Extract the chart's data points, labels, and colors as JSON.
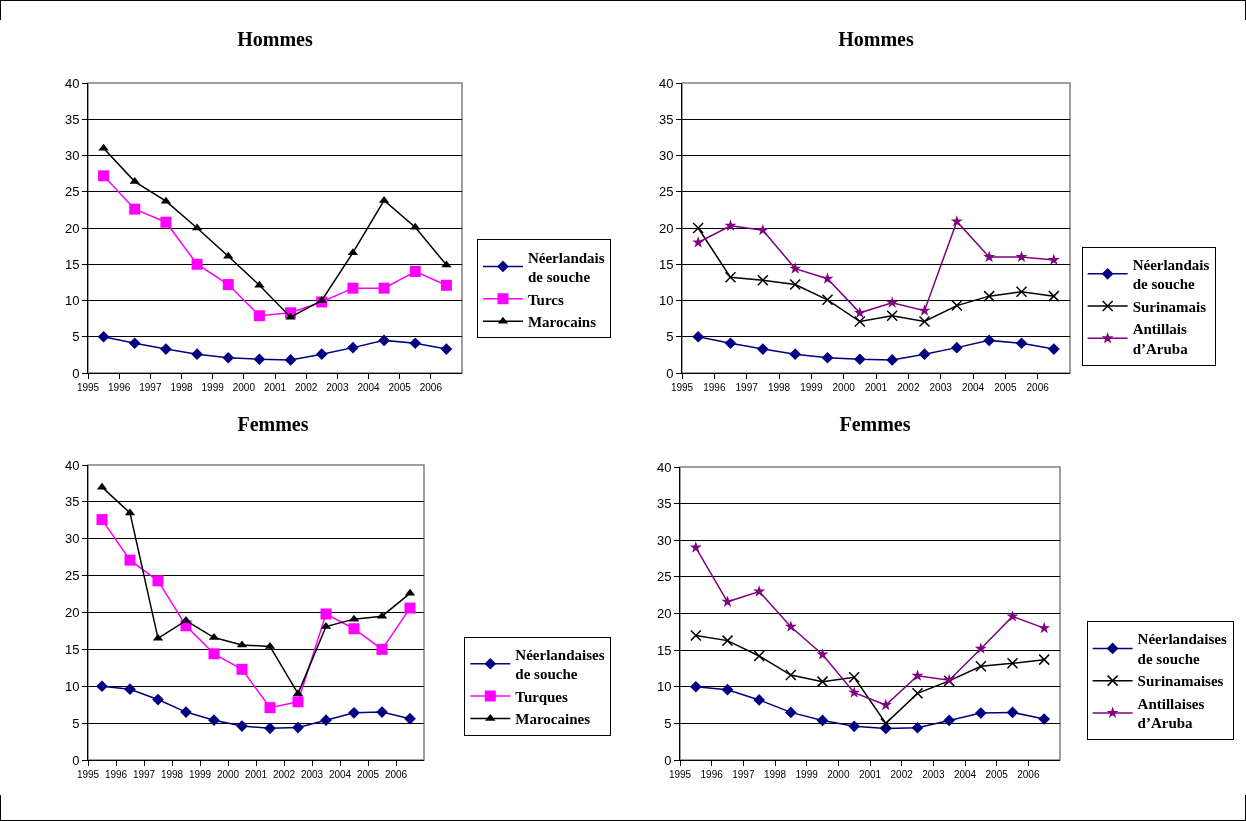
{
  "chart_data": [
    {
      "type": "line",
      "title": "Hommes",
      "x": [
        1995.5,
        1996.5,
        1997.5,
        1998.5,
        1999.5,
        2000.5,
        2001.5,
        2002.5,
        2003.5,
        2004.5,
        2005.5,
        2006.5
      ],
      "xlim": [
        1995,
        2007
      ],
      "xticks": [
        1995,
        1996,
        1997,
        1998,
        1999,
        2000,
        2001,
        2002,
        2003,
        2004,
        2005,
        2006
      ],
      "ylim": [
        0,
        40
      ],
      "yticks": [
        0,
        5,
        10,
        15,
        20,
        25,
        30,
        35,
        40
      ],
      "grid": "y",
      "legend": "right",
      "series": [
        {
          "name": "Néerlandais de souche",
          "color": "#000080",
          "marker": "diamond",
          "values": [
            5,
            4.1,
            3.3,
            2.6,
            2.1,
            1.9,
            1.8,
            2.6,
            3.5,
            4.5,
            4.1,
            3.3
          ]
        },
        {
          "name": "Turcs",
          "color": "#ff00ff",
          "marker": "square",
          "values": [
            27.2,
            22.6,
            20.8,
            15,
            12.2,
            7.9,
            8.3,
            9.8,
            11.7,
            11.7,
            14,
            12.1
          ]
        },
        {
          "name": "Marocains",
          "color": "#000000",
          "marker": "triangle",
          "values": [
            31,
            26.4,
            23.7,
            20,
            16.1,
            12.1,
            7.7,
            10,
            16.6,
            23.8,
            20.1,
            14.9
          ]
        }
      ]
    },
    {
      "type": "line",
      "title": "Hommes",
      "x": [
        1995.5,
        1996.5,
        1997.5,
        1998.5,
        1999.5,
        2000.5,
        2001.5,
        2002.5,
        2003.5,
        2004.5,
        2005.5,
        2006.5
      ],
      "xlim": [
        1995,
        2007
      ],
      "xticks": [
        1995,
        1996,
        1997,
        1998,
        1999,
        2000,
        2001,
        2002,
        2003,
        2004,
        2005,
        2006
      ],
      "ylim": [
        0,
        40
      ],
      "yticks": [
        0,
        5,
        10,
        15,
        20,
        25,
        30,
        35,
        40
      ],
      "grid": "y",
      "legend": "right",
      "series": [
        {
          "name": "Néerlandais de souche",
          "color": "#000080",
          "marker": "diamond",
          "values": [
            5,
            4.1,
            3.3,
            2.6,
            2.1,
            1.9,
            1.8,
            2.6,
            3.5,
            4.5,
            4.1,
            3.3
          ]
        },
        {
          "name": "Surinamais",
          "color": "#000000",
          "marker": "cross",
          "values": [
            20,
            13.2,
            12.8,
            12.2,
            10.1,
            7.1,
            7.9,
            7.1,
            9.3,
            10.6,
            11.2,
            10.6
          ]
        },
        {
          "name": "Antillais d’Aruba",
          "color": "#800080",
          "marker": "star",
          "values": [
            18,
            20.3,
            19.7,
            14.4,
            13,
            8.3,
            9.7,
            8.6,
            20.9,
            16,
            16,
            15.6
          ]
        }
      ]
    },
    {
      "type": "line",
      "title": "Femmes",
      "x": [
        1995.5,
        1996.5,
        1997.5,
        1998.5,
        1999.5,
        2000.5,
        2001.5,
        2002.5,
        2003.5,
        2004.5,
        2005.5,
        2006.5
      ],
      "xlim": [
        1995,
        2007
      ],
      "xticks": [
        1995,
        1996,
        1997,
        1998,
        1999,
        2000,
        2001,
        2002,
        2003,
        2004,
        2005,
        2006
      ],
      "ylim": [
        0,
        40
      ],
      "yticks": [
        0,
        5,
        10,
        15,
        20,
        25,
        30,
        35,
        40
      ],
      "grid": "y",
      "legend": "right",
      "series": [
        {
          "name": "Néerlandaises de souche",
          "color": "#000080",
          "marker": "diamond",
          "values": [
            10,
            9.6,
            8.2,
            6.5,
            5.4,
            4.6,
            4.3,
            4.4,
            5.4,
            6.4,
            6.5,
            5.6
          ]
        },
        {
          "name": "Turques",
          "color": "#ff00ff",
          "marker": "square",
          "values": [
            32.6,
            27.1,
            24.3,
            18.2,
            14.4,
            12.3,
            7.1,
            7.9,
            19.8,
            17.8,
            15,
            20.6
          ]
        },
        {
          "name": "Marocaines",
          "color": "#000000",
          "marker": "triangle",
          "values": [
            37,
            33.5,
            16.5,
            18.9,
            16.6,
            15.6,
            15.4,
            9,
            18.1,
            19.1,
            19.5,
            22.6
          ]
        }
      ]
    },
    {
      "type": "line",
      "title": "Femmes",
      "x": [
        1995.5,
        1996.5,
        1997.5,
        1998.5,
        1999.5,
        2000.5,
        2001.5,
        2002.5,
        2003.5,
        2004.5,
        2005.5,
        2006.5
      ],
      "xlim": [
        1995,
        2007
      ],
      "xticks": [
        1995,
        1996,
        1997,
        1998,
        1999,
        2000,
        2001,
        2002,
        2003,
        2004,
        2005,
        2006
      ],
      "ylim": [
        0,
        40
      ],
      "yticks": [
        0,
        5,
        10,
        15,
        20,
        25,
        30,
        35,
        40
      ],
      "grid": "y",
      "legend": "right",
      "series": [
        {
          "name": "Néerlandaises de souche",
          "color": "#000080",
          "marker": "diamond",
          "values": [
            10,
            9.6,
            8.2,
            6.5,
            5.4,
            4.6,
            4.3,
            4.4,
            5.4,
            6.4,
            6.5,
            5.6
          ]
        },
        {
          "name": "Surinamaises",
          "color": "#000000",
          "marker": "cross",
          "values": [
            17,
            16.3,
            14.2,
            11.6,
            10.7,
            11.3,
            5,
            9.1,
            10.8,
            12.8,
            13.2,
            13.7
          ]
        },
        {
          "name": "Antillaises d’Aruba",
          "color": "#800080",
          "marker": "star",
          "values": [
            29,
            21.6,
            23,
            18.2,
            14.4,
            9.2,
            7.5,
            11.5,
            10.9,
            15.2,
            19.6,
            18
          ]
        }
      ]
    }
  ]
}
